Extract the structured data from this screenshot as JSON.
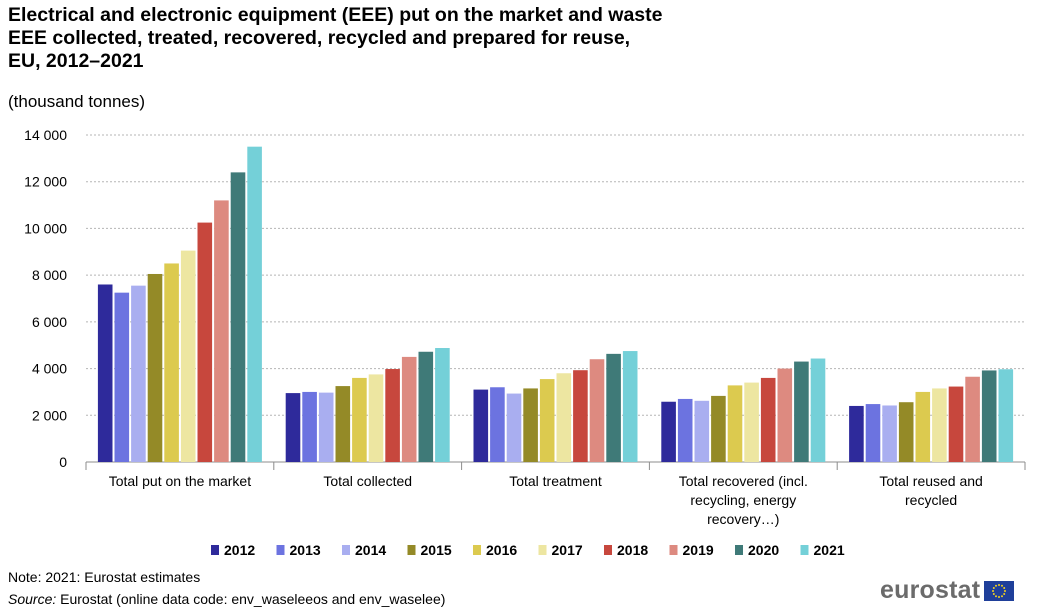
{
  "title_lines": [
    "Electrical and electronic equipment (EEE) put on the market and waste",
    "EEE collected, treated, recovered, recycled and prepared for reuse,",
    "EU, 2012–2021"
  ],
  "subtitle": "(thousand tonnes)",
  "note": "Note: 2021: Eurostat estimates",
  "source_label": "Source:",
  "source_text": " Eurostat (online data code: env_waseleeos and env_waselee)",
  "logo_text": "eurostat",
  "chart_data": {
    "type": "bar",
    "ylim": [
      0,
      14000
    ],
    "yticks": [
      0,
      2000,
      4000,
      6000,
      8000,
      10000,
      12000,
      14000
    ],
    "ytick_labels": [
      "0",
      "2 000",
      "4 000",
      "6 000",
      "8 000",
      "10 000",
      "12 000",
      "14 000"
    ],
    "grid": true,
    "legend_position": "bottom",
    "categories": [
      [
        "Total put on the market"
      ],
      [
        "Total collected"
      ],
      [
        "Total treatment"
      ],
      [
        "Total recovered (incl.",
        "recycling, energy",
        "recovery…)"
      ],
      [
        "Total reused and",
        "recycled"
      ]
    ],
    "series": [
      {
        "name": "2012",
        "color": "#2e2a9b",
        "values": [
          7600,
          2950,
          3100,
          2580,
          2400
        ]
      },
      {
        "name": "2013",
        "color": "#6c73e0",
        "values": [
          7250,
          3000,
          3200,
          2700,
          2480
        ]
      },
      {
        "name": "2014",
        "color": "#a9aef0",
        "values": [
          7550,
          2970,
          2930,
          2620,
          2420
        ]
      },
      {
        "name": "2015",
        "color": "#948a27",
        "values": [
          8050,
          3250,
          3150,
          2830,
          2560
        ]
      },
      {
        "name": "2016",
        "color": "#dcca4f",
        "values": [
          8500,
          3600,
          3550,
          3280,
          3000
        ]
      },
      {
        "name": "2017",
        "color": "#ede6a1",
        "values": [
          9050,
          3750,
          3800,
          3400,
          3150
        ]
      },
      {
        "name": "2018",
        "color": "#c7473d",
        "values": [
          10250,
          3980,
          3930,
          3600,
          3230
        ]
      },
      {
        "name": "2019",
        "color": "#dd8a80",
        "values": [
          11200,
          4500,
          4400,
          4000,
          3650
        ]
      },
      {
        "name": "2020",
        "color": "#3f7a78",
        "values": [
          12400,
          4720,
          4630,
          4300,
          3920
        ]
      },
      {
        "name": "2021",
        "color": "#74d0d8",
        "values": [
          13500,
          4880,
          4750,
          4430,
          3970
        ]
      }
    ]
  }
}
